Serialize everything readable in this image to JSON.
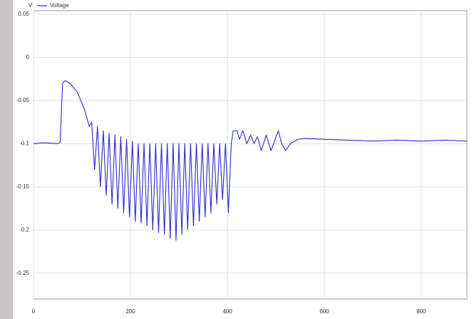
{
  "chart_data": {
    "type": "line",
    "y_label": "V",
    "x": [
      0,
      20,
      50,
      55,
      60,
      65,
      75,
      90,
      105,
      115,
      120,
      126,
      132,
      138,
      144,
      150,
      156,
      162,
      168,
      174,
      180,
      186,
      192,
      198,
      204,
      210,
      216,
      222,
      228,
      234,
      240,
      246,
      252,
      258,
      264,
      270,
      276,
      282,
      288,
      294,
      300,
      306,
      312,
      318,
      324,
      330,
      336,
      342,
      348,
      354,
      360,
      366,
      372,
      378,
      384,
      390,
      396,
      402,
      408,
      412,
      420,
      425,
      432,
      440,
      448,
      455,
      462,
      470,
      480,
      490,
      505,
      512,
      520,
      530,
      545,
      560,
      600,
      650,
      700,
      750,
      800,
      850,
      894
    ],
    "series": [
      {
        "name": "Voltage",
        "color": "#2a2acf",
        "values": [
          -0.1,
          -0.099,
          -0.1,
          -0.098,
          -0.03,
          -0.027,
          -0.03,
          -0.04,
          -0.06,
          -0.08,
          -0.075,
          -0.13,
          -0.08,
          -0.15,
          -0.085,
          -0.16,
          -0.088,
          -0.17,
          -0.09,
          -0.175,
          -0.092,
          -0.18,
          -0.095,
          -0.185,
          -0.097,
          -0.19,
          -0.1,
          -0.192,
          -0.1,
          -0.195,
          -0.1,
          -0.2,
          -0.1,
          -0.203,
          -0.1,
          -0.205,
          -0.1,
          -0.21,
          -0.1,
          -0.212,
          -0.1,
          -0.205,
          -0.1,
          -0.2,
          -0.1,
          -0.195,
          -0.1,
          -0.19,
          -0.1,
          -0.185,
          -0.1,
          -0.18,
          -0.1,
          -0.17,
          -0.1,
          -0.165,
          -0.1,
          -0.18,
          -0.1,
          -0.085,
          -0.085,
          -0.095,
          -0.085,
          -0.1,
          -0.09,
          -0.1,
          -0.092,
          -0.108,
          -0.09,
          -0.108,
          -0.085,
          -0.1,
          -0.108,
          -0.1,
          -0.095,
          -0.094,
          -0.095,
          -0.096,
          -0.097,
          -0.096,
          -0.097,
          -0.096,
          -0.097
        ]
      }
    ],
    "xlim": [
      0,
      894
    ],
    "ylim": [
      -0.28,
      0.054
    ],
    "xticks": [
      0,
      200,
      400,
      600,
      800
    ],
    "yticks": [
      0.05,
      0,
      -0.05,
      -0.1,
      -0.15,
      -0.2,
      -0.25
    ],
    "grid": true
  }
}
